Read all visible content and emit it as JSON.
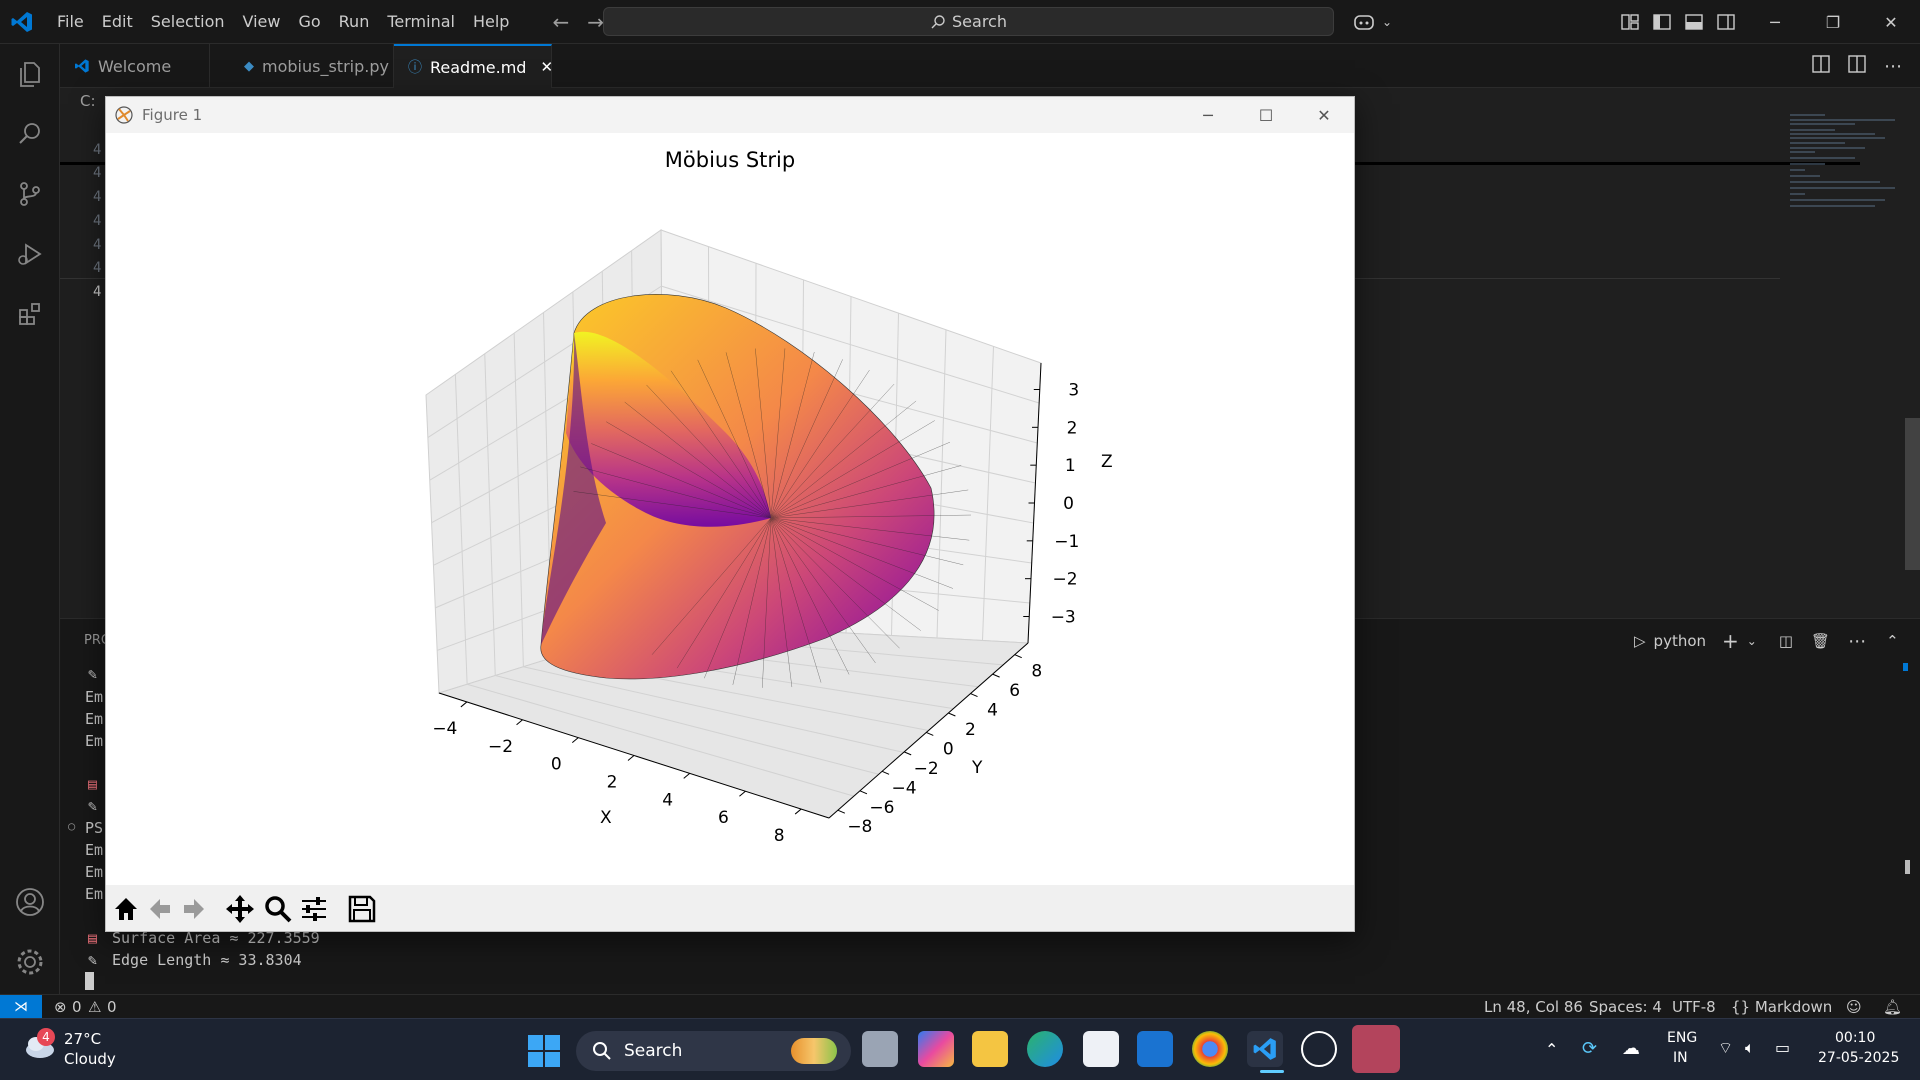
{
  "menu": [
    "File",
    "Edit",
    "Selection",
    "View",
    "Go",
    "Run",
    "Terminal",
    "Help"
  ],
  "search": {
    "label": "Search"
  },
  "tabs": [
    {
      "label": "Welcome"
    },
    {
      "label": "mobius_strip.py"
    },
    {
      "label": "Readme.md"
    }
  ],
  "breadcrumb": "C:",
  "line_numbers": [
    "4",
    "4",
    "4",
    "4",
    "4",
    "4",
    "4"
  ],
  "figure": {
    "window_title": "Figure 1",
    "chart_data": {
      "type": "surface3d",
      "title": "Möbius Strip",
      "xlabel": "X",
      "ylabel": "Y",
      "zlabel": "Z",
      "xticks": [
        "−4",
        "−2",
        "0",
        "2",
        "4",
        "6",
        "8"
      ],
      "yticks": [
        "−8",
        "−6",
        "−4",
        "−2",
        "0",
        "2",
        "4",
        "6",
        "8"
      ],
      "zticks": [
        "3",
        "2",
        "1",
        "0",
        "−1",
        "−2",
        "−3"
      ],
      "xlim": [
        -5,
        9
      ],
      "ylim": [
        -9,
        9
      ],
      "zlim": [
        -3.5,
        3.5
      ],
      "colormap": "plasma",
      "grid": true
    }
  },
  "panel": {
    "header": "PRO",
    "terminal_name": "python",
    "lines": [
      {
        "text": "Em"
      },
      {
        "text": "Em"
      },
      {
        "text": "Em"
      },
      {
        "text": "PS"
      },
      {
        "text": "Em"
      },
      {
        "text": "Em"
      },
      {
        "text": "Em"
      },
      {
        "text": "Surface Area ≈ 227.3559"
      },
      {
        "text": "Edge Length ≈ 33.8304"
      }
    ]
  },
  "status": {
    "errors": "0",
    "warnings": "0",
    "position": "Ln 48, Col 86",
    "spaces": "Spaces: 4",
    "encoding": "UTF-8",
    "language": "{} Markdown"
  },
  "taskbar": {
    "weather_temp": "27°C",
    "weather_desc": "Cloudy",
    "weather_badge": "4",
    "search": "Search",
    "lang_top": "ENG",
    "lang_bottom": "IN",
    "time": "00:10",
    "date": "27-05-2025"
  },
  "colors": {
    "accent": "#0078d4",
    "titlebar": "#181818",
    "editor": "#1f1f1f",
    "taskbar": "#1c2331"
  }
}
